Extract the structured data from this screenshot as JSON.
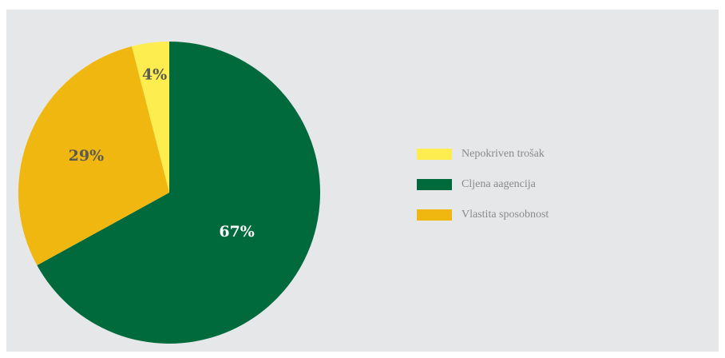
{
  "chart_data": {
    "type": "pie",
    "categories": [
      "Nepokriven trošak",
      "Cljena aagencija",
      "Vlastita sposobnost"
    ],
    "values": [
      4,
      67,
      29
    ],
    "value_labels": [
      "4%",
      "67%",
      "29%"
    ],
    "colors": [
      "#fded4f",
      "#006a3d",
      "#f0b710"
    ],
    "label_colors": [
      "#5a5a52",
      "#ffffff",
      "#5a5a52"
    ],
    "legend": "right"
  }
}
